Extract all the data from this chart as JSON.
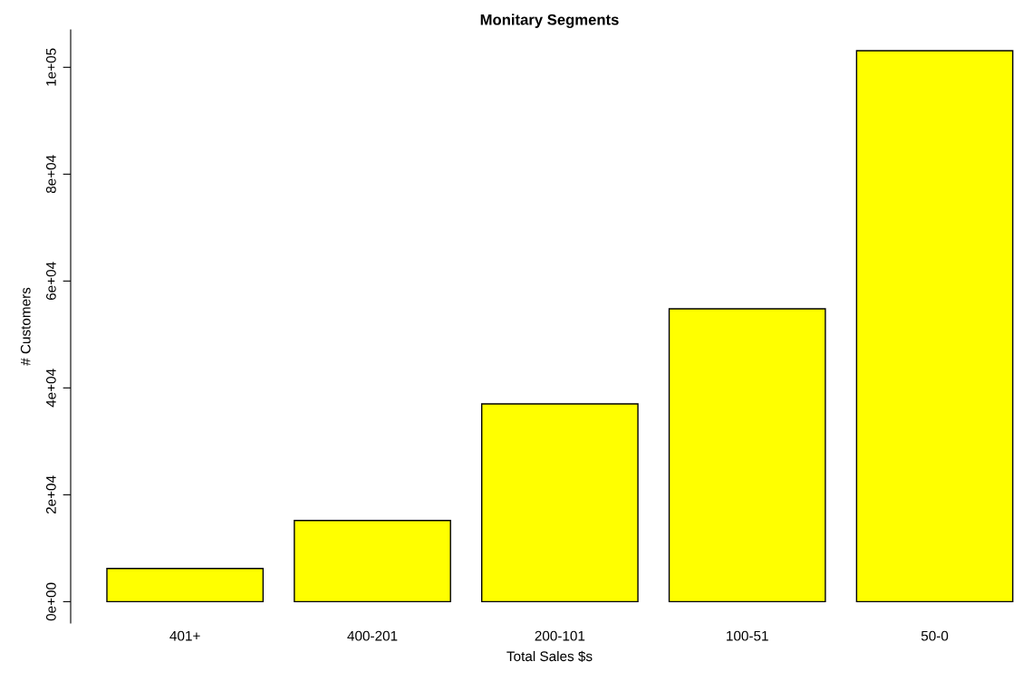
{
  "chart_data": {
    "type": "bar",
    "title": "Monitary Segments",
    "xlabel": "Total Sales $s",
    "ylabel": "# Customers",
    "categories": [
      "401+",
      "400-201",
      "200-101",
      "100-51",
      "50-0"
    ],
    "values": [
      6200,
      15200,
      37000,
      54800,
      103100
    ],
    "color": "#ffff00",
    "ylim": [
      -4000,
      107000
    ],
    "yticks": [
      {
        "value": 0,
        "label": "0e+00"
      },
      {
        "value": 20000,
        "label": "2e+04"
      },
      {
        "value": 40000,
        "label": "4e+04"
      },
      {
        "value": 60000,
        "label": "6e+04"
      },
      {
        "value": 80000,
        "label": "8e+04"
      },
      {
        "value": 100000,
        "label": "1e+05"
      }
    ],
    "grid": false
  }
}
